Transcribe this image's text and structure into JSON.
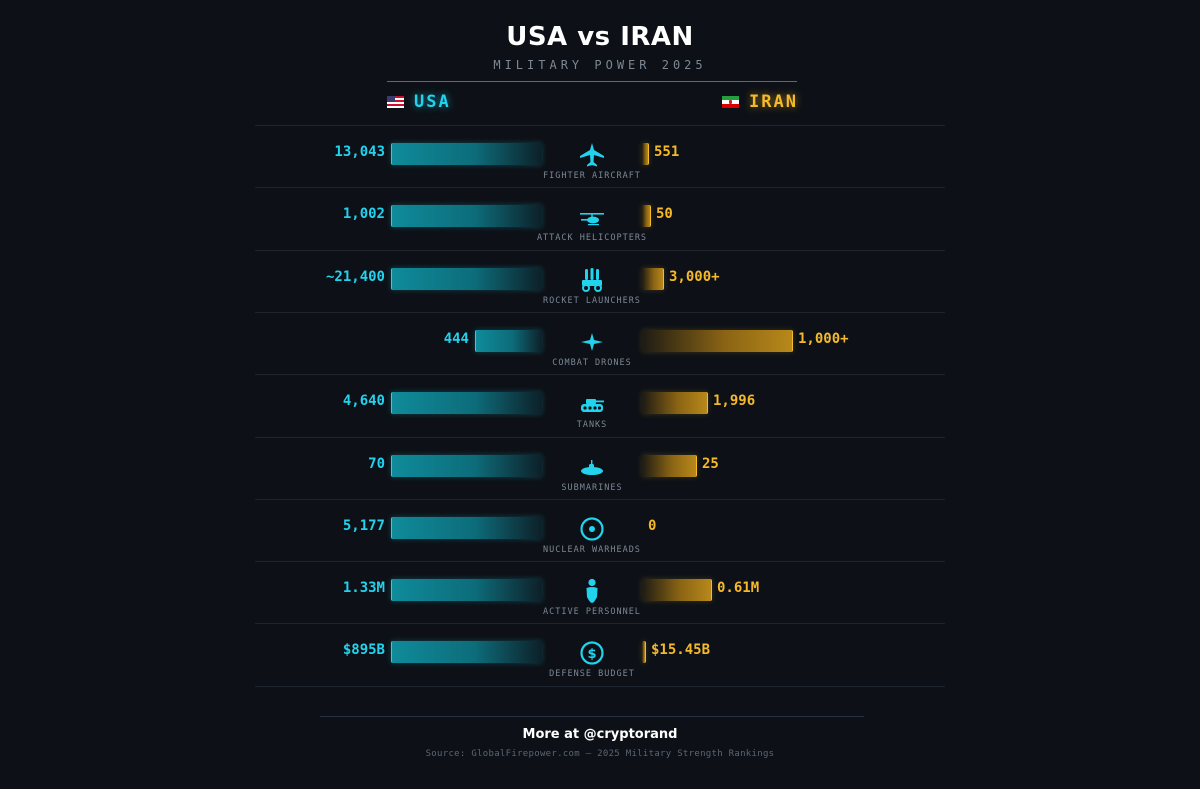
{
  "header": {
    "title": "USA vs IRAN",
    "subtitle": "MILITARY POWER 2025"
  },
  "countries": {
    "usa": {
      "label": "USA",
      "flag": "us-flag-icon"
    },
    "iran": {
      "label": "IRAN",
      "flag": "iran-flag-icon"
    }
  },
  "colors": {
    "usa": "#22d3ee",
    "iran": "#f5b92a",
    "background": "#0d1117"
  },
  "chart_data": {
    "type": "bar",
    "orientation": "horizontal-butterfly",
    "title": "USA vs IRAN",
    "subtitle": "MILITARY POWER 2025",
    "categories": [
      "FIGHTER AIRCRAFT",
      "ATTACK HELICOPTERS",
      "ROCKET LAUNCHERS",
      "COMBAT DRONES",
      "TANKS",
      "SUBMARINES",
      "NUCLEAR WARHEADS",
      "ACTIVE PERSONNEL",
      "DEFENSE BUDGET"
    ],
    "icons": [
      "jet-icon",
      "helicopter-icon",
      "rocket-launcher-icon",
      "drone-icon",
      "tank-icon",
      "submarine-icon",
      "nuclear-icon",
      "soldier-icon",
      "dollar-icon"
    ],
    "series": [
      {
        "name": "USA",
        "labels": [
          "13,043",
          "1,002",
          "~21,400",
          "444",
          "4,640",
          "70",
          "5,177",
          "1.33M",
          "$895B"
        ],
        "values": [
          13043,
          1002,
          21400,
          444,
          4640,
          70,
          5177,
          1.33,
          895
        ],
        "bar_fraction": [
          1,
          1,
          1,
          0.44,
          1,
          1,
          1,
          1,
          1
        ]
      },
      {
        "name": "IRAN",
        "labels": [
          "551",
          "50",
          "3,000+",
          "1,000+",
          "1,996",
          "25",
          "0",
          "0.61M",
          "$15.45B"
        ],
        "values": [
          551,
          50,
          3000,
          1000,
          1996,
          25,
          0,
          0.61,
          15.45
        ],
        "bar_fraction": [
          0.04,
          0.05,
          0.14,
          1,
          0.43,
          0.36,
          0,
          0.46,
          0.02
        ]
      }
    ]
  },
  "footer": {
    "cta": "More at @cryptorand",
    "source": "Source: GlobalFirepower.com — 2025 Military Strength Rankings"
  }
}
